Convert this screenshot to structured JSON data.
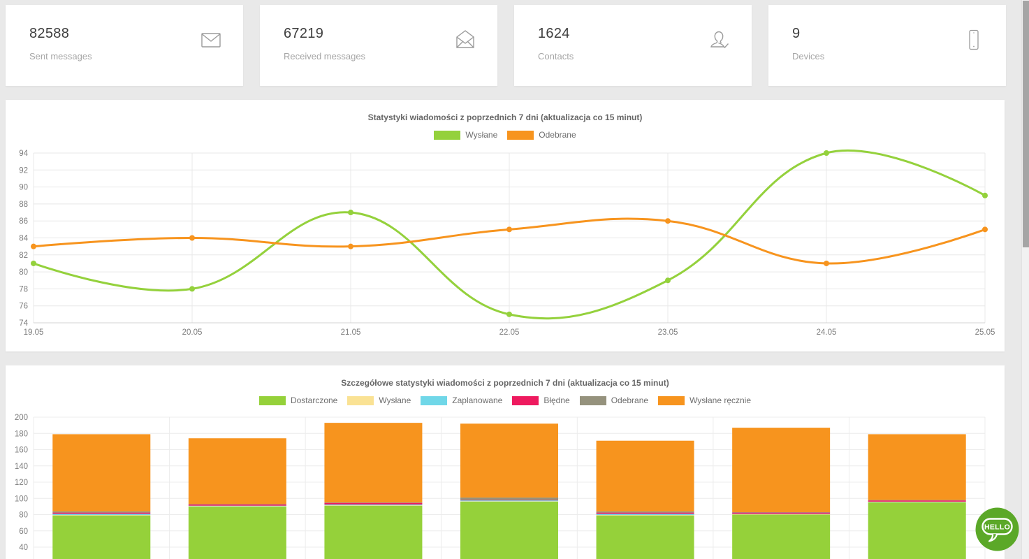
{
  "ui_colors": {
    "page_bg": "#e9e9e9",
    "card_bg": "#ffffff",
    "hello_green": "#5ba828",
    "line_green": "#94d13c",
    "line_orange": "#f7941e"
  },
  "stat_cards": [
    {
      "value": "82588",
      "label": "Sent messages",
      "icon": "mail-closed-icon"
    },
    {
      "value": "67219",
      "label": "Received messages",
      "icon": "mail-open-icon"
    },
    {
      "value": "1624",
      "label": "Contacts",
      "icon": "contact-check-icon"
    },
    {
      "value": "9",
      "label": "Devices",
      "icon": "smartphone-icon"
    }
  ],
  "chart_data": [
    {
      "type": "line",
      "title": "Statystyki wiadomości z poprzednich 7 dni (aktualizacja co 15 minut)",
      "x": [
        "19.05",
        "20.05",
        "21.05",
        "22.05",
        "23.05",
        "24.05",
        "25.05"
      ],
      "series": [
        {
          "name": "Wysłane",
          "color": "#94d13c",
          "values": [
            81,
            78,
            87,
            75,
            79,
            94,
            89
          ]
        },
        {
          "name": "Odebrane",
          "color": "#f7941e",
          "values": [
            83,
            84,
            83,
            85,
            86,
            81,
            85
          ]
        }
      ],
      "ylim": [
        74,
        94
      ],
      "ytick": 2,
      "grid": true,
      "legend_position": "top"
    },
    {
      "type": "bar",
      "stacked": true,
      "title": "Szczegółowe statystyki wiadomości z poprzednich 7 dni (aktualizacja co 15 minut)",
      "categories": [
        "",
        "",
        "",
        "",
        "",
        "",
        ""
      ],
      "series": [
        {
          "name": "Dostarczone",
          "color": "#95d13a",
          "values": [
            79,
            90,
            91,
            96,
            79,
            80,
            95
          ]
        },
        {
          "name": "Wysłane",
          "color": "#fae294",
          "values": [
            0.5,
            0.5,
            0.5,
            0.5,
            0.5,
            0.5,
            0.5
          ]
        },
        {
          "name": "Zaplanowane",
          "color": "#70d7e8",
          "values": [
            1.5,
            0.5,
            1,
            1,
            1.5,
            0.5,
            0.5
          ]
        },
        {
          "name": "Błędne",
          "color": "#ee1a5f",
          "values": [
            1.5,
            1.5,
            2,
            0.5,
            1.5,
            1.5,
            1.5
          ]
        },
        {
          "name": "Odebrane",
          "color": "#95927d",
          "values": [
            1.5,
            0.5,
            0.5,
            3,
            1.5,
            0.5,
            0.5
          ]
        },
        {
          "name": "Wysłane ręcznie",
          "color": "#f7941e",
          "values": [
            95,
            81,
            98,
            91,
            87,
            104,
            81
          ]
        }
      ],
      "ylim": [
        0,
        200
      ],
      "ytick": 20,
      "visible_y_min": 40,
      "grid": true,
      "legend_position": "top"
    }
  ],
  "hello_button": {
    "label": "HELLO"
  }
}
